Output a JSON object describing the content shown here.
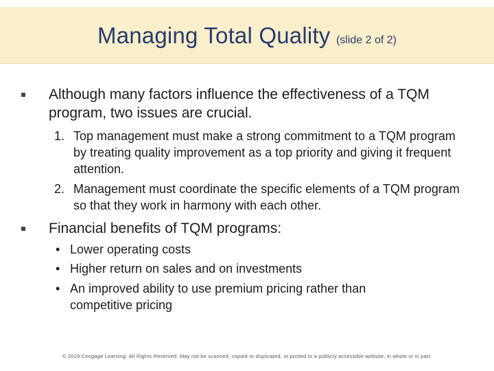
{
  "slide": {
    "title": "Managing Total Quality",
    "subtitle": "(slide 2 of 2)"
  },
  "bullets": [
    {
      "text": "Although many factors influence the effectiveness of a TQM program, two issues are crucial.",
      "numbered": [
        {
          "num": "1.",
          "text": "Top management must make a strong commitment to a TQM program by treating quality improvement as a top priority and giving it frequent attention."
        },
        {
          "num": "2.",
          "text": "Management must coordinate the specific elements of a TQM program so that they work in harmony with each other."
        }
      ]
    },
    {
      "text": "Financial benefits of TQM programs:",
      "items": [
        {
          "marker": "•",
          "text": "Lower operating costs"
        },
        {
          "marker": "•",
          "text": "Higher return on sales and on investments"
        },
        {
          "marker": "•",
          "text": "An improved ability to use premium pricing rather than competitive pricing"
        }
      ]
    }
  ],
  "footer": "© 2019 Cengage Learning. All Rights Reserved. May not be scanned, copied or duplicated, or posted to a publicly accessible website, in whole or in part.",
  "colors": {
    "title": "#253d6c",
    "title_band": "#fbeecb",
    "text": "#1c1c1c"
  }
}
